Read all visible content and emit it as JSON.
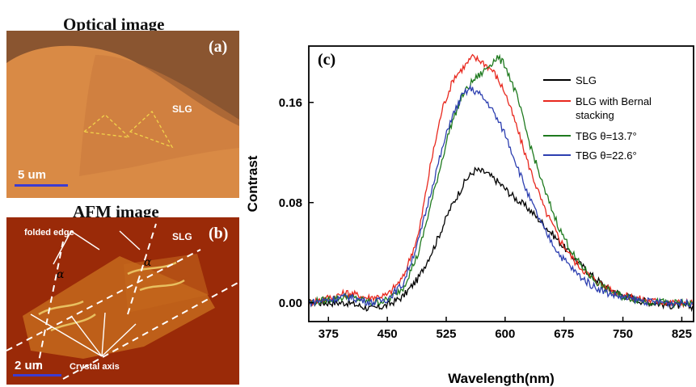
{
  "optical": {
    "header": "Optical image",
    "panel_label": "(a)",
    "region_label": "SLG",
    "scale_label": "5 um",
    "colors": {
      "background": "#d98a45",
      "top_region": "#8a5530",
      "bilayer": "#c9783c"
    }
  },
  "afm": {
    "header": "AFM  image",
    "panel_label": "(b)",
    "region_label": "SLG",
    "folded_edge_label": "folded edge",
    "angle_symbol": "α",
    "crystal_axis_label": "Crystal axis",
    "scale_label": "2 um",
    "colors": {
      "background": "#9a2a08",
      "flake": "#c4681c",
      "bright": "#e8c060"
    }
  },
  "chart_data": {
    "type": "line",
    "panel_label": "(c)",
    "xlabel": "Wavelength(nm)",
    "ylabel": "Contrast",
    "xlim": [
      350,
      840
    ],
    "ylim": [
      -0.015,
      0.205
    ],
    "xticks": [
      375,
      450,
      525,
      600,
      675,
      750,
      825
    ],
    "yticks": [
      0.0,
      0.08,
      0.16
    ],
    "ytick_labels": [
      "0.00",
      "0.08",
      "0.16"
    ],
    "legend": {
      "position": "top-right"
    },
    "series": [
      {
        "name": "SLG",
        "color": "#000000",
        "x": [
          350,
          400,
          430,
          450,
          470,
          490,
          510,
          530,
          550,
          562,
          575,
          590,
          610,
          630,
          650,
          670,
          690,
          710,
          730,
          750,
          770,
          790,
          810,
          840
        ],
        "y": [
          0.0,
          0.0,
          -0.005,
          -0.002,
          0.005,
          0.02,
          0.045,
          0.075,
          0.098,
          0.106,
          0.104,
          0.097,
          0.085,
          0.075,
          0.062,
          0.048,
          0.034,
          0.022,
          0.012,
          0.006,
          0.002,
          0.0,
          -0.002,
          -0.003
        ]
      },
      {
        "name": "BLG with Bernal stacking",
        "color": "#e8281e",
        "x": [
          350,
          400,
          425,
          450,
          470,
          490,
          505,
          520,
          535,
          550,
          558,
          570,
          585,
          600,
          615,
          630,
          650,
          670,
          690,
          710,
          730,
          750,
          780,
          810,
          840
        ],
        "y": [
          0.0,
          0.008,
          0.004,
          0.006,
          0.02,
          0.055,
          0.11,
          0.155,
          0.18,
          0.19,
          0.196,
          0.193,
          0.185,
          0.168,
          0.14,
          0.11,
          0.075,
          0.05,
          0.032,
          0.02,
          0.012,
          0.006,
          0.002,
          0.0,
          0.0
        ]
      },
      {
        "name": "TBG θ=13.7°",
        "color": "#1f7a1f",
        "x": [
          350,
          400,
          430,
          450,
          470,
          490,
          510,
          530,
          545,
          560,
          570,
          580,
          590,
          600,
          615,
          630,
          650,
          670,
          690,
          710,
          730,
          750,
          780,
          810,
          840
        ],
        "y": [
          0.0,
          0.005,
          0.0,
          0.002,
          0.012,
          0.04,
          0.09,
          0.14,
          0.165,
          0.178,
          0.183,
          0.19,
          0.196,
          0.19,
          0.165,
          0.13,
          0.09,
          0.058,
          0.035,
          0.02,
          0.01,
          0.005,
          0.001,
          0.0,
          -0.001
        ]
      },
      {
        "name": "TBG θ=22.6°",
        "color": "#2d3fb0",
        "x": [
          350,
          400,
          430,
          450,
          470,
          490,
          510,
          530,
          545,
          555,
          565,
          580,
          600,
          615,
          630,
          650,
          670,
          690,
          710,
          730,
          750,
          780,
          810,
          840
        ],
        "y": [
          0.0,
          0.005,
          0.0,
          0.003,
          0.015,
          0.05,
          0.1,
          0.145,
          0.165,
          0.171,
          0.168,
          0.158,
          0.135,
          0.11,
          0.085,
          0.058,
          0.038,
          0.024,
          0.014,
          0.008,
          0.004,
          0.001,
          0.0,
          0.0
        ]
      }
    ],
    "legend_lines": [
      [
        "SLG"
      ],
      [
        "BLG with Bernal",
        "stacking"
      ],
      [
        "TBG θ=13.7°"
      ],
      [
        "TBG θ=22.6°"
      ]
    ]
  }
}
